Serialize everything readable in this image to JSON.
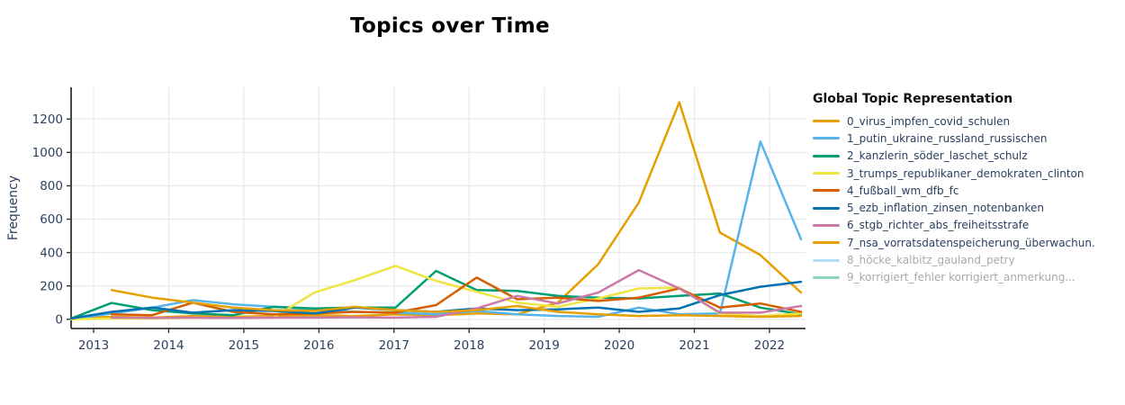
{
  "title": "Topics over Time",
  "y_axis_label": "Frequency",
  "legend": {
    "title": "Global Topic Representation",
    "items": [
      {
        "label": "0_virus_impfen_covid_schulen",
        "color": "#E69F00",
        "active": true
      },
      {
        "label": "1_putin_ukraine_russland_russischen",
        "color": "#56B4E9",
        "active": true
      },
      {
        "label": "2_kanzlerin_söder_laschet_schulz",
        "color": "#009E73",
        "active": true
      },
      {
        "label": "3_trumps_republikaner_demokraten_clinton",
        "color": "#F0E442",
        "active": true
      },
      {
        "label": "4_fußball_wm_dfb_fc",
        "color": "#D55E00",
        "active": true
      },
      {
        "label": "5_ezb_inflation_zinsen_notenbanken",
        "color": "#0072B2",
        "active": true
      },
      {
        "label": "6_stgb_richter_abs_freiheitsstrafe",
        "color": "#CC79A7",
        "active": true
      },
      {
        "label": "7_nsa_vorratsdatenspeicherung_überwachun.",
        "color": "#E69F00",
        "active": true
      },
      {
        "label": "8_höcke_kalbitz_gauland_petry",
        "color": "#56B4E9",
        "active": false
      },
      {
        "label": "9_korrigiert_fehler korrigiert_anmerkung...",
        "color": "#009E73",
        "active": false
      }
    ]
  },
  "chart_data": {
    "type": "line",
    "title": "Topics over Time",
    "xlabel": "",
    "ylabel": "Frequency",
    "grid": true,
    "legend_position": "right",
    "xlim": [
      2012.7,
      2022.48
    ],
    "ylim": [
      -55,
      1390
    ],
    "x_ticks": [
      2013,
      2014,
      2015,
      2016,
      2017,
      2018,
      2019,
      2020,
      2021,
      2022
    ],
    "y_ticks": [
      0,
      200,
      400,
      600,
      800,
      1000,
      1200
    ],
    "x": [
      2012.7,
      2013.24,
      2013.78,
      2014.32,
      2014.86,
      2015.4,
      2015.94,
      2016.48,
      2017.02,
      2017.56,
      2018.1,
      2018.64,
      2019.18,
      2019.72,
      2020.26,
      2020.8,
      2021.34,
      2021.88,
      2022.42
    ],
    "series": [
      {
        "name": "0_virus_impfen_covid_schulen",
        "color": "#E69F00",
        "visible": true,
        "values": [
          5,
          15,
          10,
          20,
          15,
          20,
          25,
          20,
          30,
          25,
          35,
          30,
          100,
          330,
          700,
          1300,
          520,
          385,
          160
        ]
      },
      {
        "name": "1_putin_ukraine_russland_russischen",
        "color": "#56B4E9",
        "visible": true,
        "values": [
          0,
          35,
          70,
          115,
          90,
          75,
          60,
          45,
          40,
          30,
          50,
          30,
          20,
          15,
          70,
          30,
          35,
          1065,
          480
        ]
      },
      {
        "name": "2_kanzlerin_söder_laschet_schulz",
        "color": "#009E73",
        "visible": true,
        "values": [
          5,
          98,
          55,
          35,
          25,
          75,
          65,
          70,
          70,
          290,
          175,
          170,
          140,
          130,
          125,
          140,
          155,
          70,
          30
        ]
      },
      {
        "name": "3_trumps_republikaner_demokraten_clinton",
        "color": "#F0E442",
        "visible": true,
        "values": [
          0,
          5,
          5,
          10,
          8,
          12,
          160,
          235,
          320,
          230,
          165,
          100,
          75,
          125,
          185,
          190,
          35,
          20,
          35
        ]
      },
      {
        "name": "4_fußball_wm_dfb_fc",
        "color": "#D55E00",
        "visible": true,
        "values": [
          null,
          30,
          25,
          100,
          45,
          30,
          35,
          45,
          40,
          85,
          250,
          120,
          130,
          110,
          130,
          185,
          70,
          95,
          45
        ]
      },
      {
        "name": "5_ezb_inflation_zinsen_notenbanken",
        "color": "#0072B2",
        "visible": true,
        "values": [
          5,
          45,
          70,
          40,
          55,
          50,
          35,
          70,
          55,
          45,
          65,
          55,
          60,
          70,
          45,
          65,
          145,
          195,
          225
        ]
      },
      {
        "name": "6_stgb_richter_abs_freiheitsstrafe",
        "color": "#CC79A7",
        "visible": true,
        "values": [
          null,
          10,
          8,
          10,
          8,
          10,
          10,
          12,
          10,
          15,
          65,
          140,
          95,
          160,
          295,
          185,
          40,
          40,
          80
        ]
      },
      {
        "name": "7_nsa_vorratsdatenspeicherung_überwachun.",
        "color": "#E69F00",
        "visible": true,
        "values": [
          null,
          175,
          130,
          100,
          70,
          55,
          50,
          75,
          55,
          45,
          55,
          80,
          45,
          30,
          20,
          25,
          20,
          15,
          20
        ]
      },
      {
        "name": "8_höcke_kalbitz_gauland_petry",
        "color": "#56B4E9",
        "visible": false,
        "values": null
      },
      {
        "name": "9_korrigiert_fehler korrigiert_anmerkung...",
        "color": "#009E73",
        "visible": false,
        "values": null
      }
    ]
  }
}
